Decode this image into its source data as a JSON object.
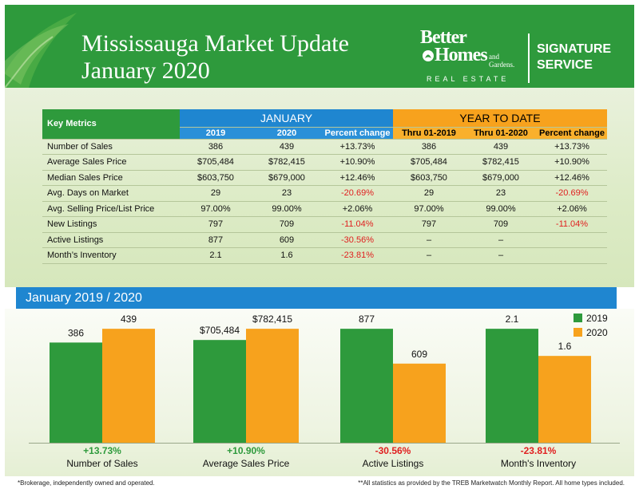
{
  "header": {
    "title": "Mississauga Market Update\nJanuary 2020",
    "brand_line1": "Better",
    "brand_line2": "Homes",
    "brand_sub": "and Gardens.",
    "brand_re": "REAL ESTATE",
    "signature": "SIGNATURE\nSERVICE",
    "colors": {
      "green": "#2e9a3c",
      "blue": "#1f86d0",
      "orange": "#f7a21d",
      "negative": "#e02020"
    }
  },
  "table": {
    "key_metrics": "Key Metrics",
    "january": "JANUARY",
    "ytd": "YEAR TO DATE",
    "sub_headers": [
      "2019",
      "2020",
      "Percent change",
      "Thru 01-2019",
      "Thru 01-2020",
      "Percent change"
    ],
    "rows": [
      {
        "label": "Number of Sales",
        "cells": [
          "386",
          "439",
          "+13.73%",
          "386",
          "439",
          "+13.73%"
        ]
      },
      {
        "label": "Average Sales Price",
        "cells": [
          "$705,484",
          "$782,415",
          "+10.90%",
          "$705,484",
          "$782,415",
          "+10.90%"
        ]
      },
      {
        "label": "Median Sales Price",
        "cells": [
          "$603,750",
          "$679,000",
          "+12.46%",
          "$603,750",
          "$679,000",
          "+12.46%"
        ]
      },
      {
        "label": "Avg. Days on Market",
        "cells": [
          "29",
          "23",
          "-20.69%",
          "29",
          "23",
          "-20.69%"
        ]
      },
      {
        "label": "Avg. Selling Price/List Price",
        "cells": [
          "97.00%",
          "99.00%",
          "+2.06%",
          "97.00%",
          "99.00%",
          "+2.06%"
        ]
      },
      {
        "label": "New Listings",
        "cells": [
          "797",
          "709",
          "-11.04%",
          "797",
          "709",
          "-11.04%"
        ]
      },
      {
        "label": "Active Listings",
        "cells": [
          "877",
          "609",
          "-30.56%",
          "–",
          "–",
          ""
        ]
      },
      {
        "label": "Month’s Inventory",
        "cells": [
          "2.1",
          "1.6",
          "-23.81%",
          "–",
          "–",
          ""
        ]
      }
    ]
  },
  "chart_band": "January 2019 / 2020",
  "chart_data": {
    "type": "bar",
    "categories": [
      "Number of Sales",
      "Average Sales Price",
      "Active Listings",
      "Month's Inventory"
    ],
    "series": [
      {
        "name": "2019",
        "values": [
          386,
          705484,
          877,
          2.1
        ],
        "labels": [
          "386",
          "$705,484",
          "877",
          "2.1"
        ],
        "color": "#2e9a3c"
      },
      {
        "name": "2020",
        "values": [
          439,
          782415,
          609,
          1.6
        ],
        "labels": [
          "439",
          "$782,415",
          "609",
          "1.6"
        ],
        "color": "#f7a21d"
      }
    ],
    "changes": [
      "+13.73%",
      "+10.90%",
      "-30.56%",
      "-23.81%"
    ],
    "change_colors": [
      "#2e9a3c",
      "#2e9a3c",
      "#e02020",
      "#e02020"
    ],
    "legend": "top-right",
    "grid": false,
    "independent_scales": true
  },
  "footer": {
    "left": "*Brokerage, independently owned and operated.",
    "right": "**All statistics as provided by the TREB Marketwatch Monthly Report. All home types included."
  }
}
